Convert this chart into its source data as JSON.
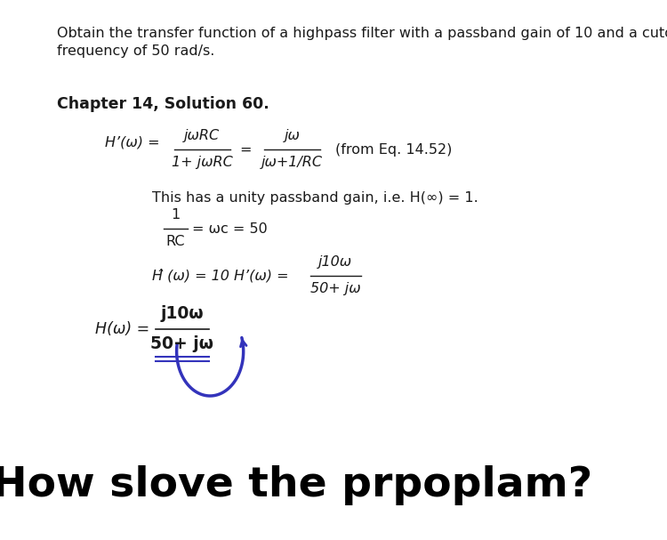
{
  "background_color": "#ffffff",
  "top_line1": "Obtain the transfer function of a highpass filter with a passband gain of 10 and a cutoff",
  "top_line2": "frequency of 50 rad/s.",
  "chapter_heading": "Chapter 14, Solution 60.",
  "line2_text": "This has a unity passband gain, i.e. H(∞) = 1.",
  "line3_eq": "= ωᴄ = 50",
  "line4_left": "Ĥ (ω) = 10 H’(ω) =",
  "line5_left": "H(ω) =",
  "frac_num5": "j10ω",
  "frac_den5": "50+ jω",
  "bottom_text": "How slove the prpoplam?",
  "arrow_color": "#3333bb",
  "underline_color": "#3333bb",
  "text_color": "#1a1a1a",
  "font_size_body": 11.5,
  "font_size_bottom": 34
}
